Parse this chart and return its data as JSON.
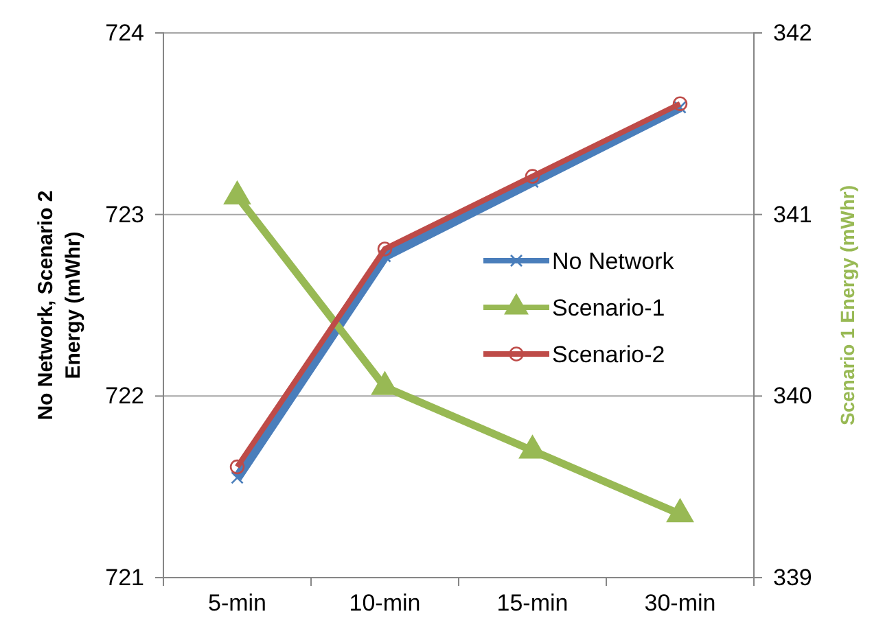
{
  "chart_data": {
    "type": "line",
    "ylabel": "No Network, Scenario 2 Energy (mWhr)",
    "y2label": "Scenario 1 Energy (mWhr)",
    "categories": [
      "5-min",
      "10-min",
      "15-min",
      "30-min"
    ],
    "series": [
      {
        "name": "No Network",
        "color": "#4a7ebb",
        "marker": "cross",
        "values": [
          721.55,
          722.77,
          723.18,
          723.59
        ]
      },
      {
        "name": "Scenario-1",
        "color": "#98b954",
        "marker": "triangle",
        "axis": "y2",
        "values": [
          341.1,
          340.05,
          339.7,
          339.35
        ]
      },
      {
        "name": "Scenario-2",
        "color": "#be4b48",
        "marker": "circle",
        "values": [
          721.61,
          722.81,
          723.21,
          723.61
        ]
      }
    ],
    "ylim": [
      721,
      724
    ],
    "yticks": [
      721,
      722,
      723,
      724
    ],
    "y2lim": [
      339,
      342
    ],
    "y2ticks": [
      339,
      340,
      341,
      342
    ],
    "grid": "y",
    "legend": "right"
  }
}
